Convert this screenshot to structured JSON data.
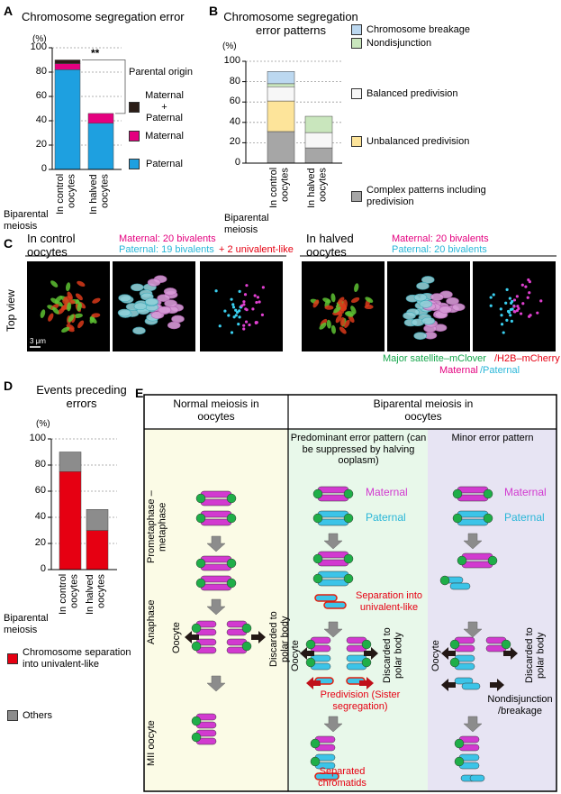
{
  "panel_labels": [
    "A",
    "B",
    "C",
    "D",
    "E"
  ],
  "chart_data": [
    {
      "type": "bar",
      "stacked": true,
      "title": "Chromosome segregation error",
      "ylabel": "(%)",
      "xlabel": "Biparental meiosis",
      "categories": [
        "In control oocytes",
        "In halved oocytes"
      ],
      "series": [
        {
          "name": "Paternal",
          "color": "#1ea0e0",
          "values": [
            82,
            38
          ]
        },
        {
          "name": "Maternal",
          "color": "#e4007f",
          "values": [
            5,
            8
          ]
        },
        {
          "name": "Maternal + Paternal",
          "color": "#2b1d17",
          "values": [
            3,
            0
          ]
        }
      ],
      "ylim": [
        0,
        100
      ],
      "yticks": [
        0,
        20,
        40,
        60,
        80,
        100
      ],
      "grid": true,
      "legend_title": "Parental origin",
      "legend_reversed": true,
      "annotation": "**"
    },
    {
      "type": "bar",
      "stacked": true,
      "title": "Chromosome segregation error patterns",
      "ylabel": "(%)",
      "xlabel": "Biparental meiosis",
      "categories": [
        "In control oocytes",
        "In halved oocytes"
      ],
      "series": [
        {
          "name": "Complex patterns including predivision",
          "color": "#a6a6a6",
          "values": [
            31,
            15
          ]
        },
        {
          "name": "Unbalanced predivision",
          "color": "#fde49a",
          "values": [
            30,
            0
          ]
        },
        {
          "name": "Balanced predivision",
          "color": "#f7f7f7",
          "values": [
            14,
            15
          ]
        },
        {
          "name": "Nondisjunction",
          "color": "#c9e6bd",
          "values": [
            3,
            16
          ]
        },
        {
          "name": "Chromosome breakage",
          "color": "#bcd8f0",
          "values": [
            12,
            0
          ]
        }
      ],
      "ylim": [
        0,
        100
      ],
      "yticks": [
        0,
        20,
        40,
        60,
        80,
        100
      ],
      "grid": true,
      "legend_reversed": true
    },
    {
      "type": "bar",
      "stacked": true,
      "title": "Events preceding errors",
      "ylabel": "(%)",
      "xlabel": "Biparental meiosis",
      "categories": [
        "In control oocytes",
        "In halved oocytes"
      ],
      "series": [
        {
          "name": "Chromosome separation into univalent-like",
          "color": "#e60012",
          "values": [
            75,
            30
          ]
        },
        {
          "name": "Others",
          "color": "#8c8c8c",
          "values": [
            15,
            16
          ]
        }
      ],
      "ylim": [
        0,
        100
      ],
      "yticks": [
        0,
        20,
        40,
        60,
        80,
        100
      ],
      "grid": true,
      "legend_reversed": false
    }
  ],
  "panel_c": {
    "left_title": "In control oocytes",
    "left_maternal": "Maternal: 20 bivalents",
    "left_paternal": "Paternal: 19 bivalents",
    "left_univalent": "+ 2 univalent-like",
    "right_title": "In halved oocytes",
    "right_maternal": "Maternal: 20 bivalents",
    "right_paternal": "Paternal: 20 bivalents",
    "row_label": "Top view",
    "scale_bar": "3 μm",
    "caption_green": "Major satellite–mClover",
    "caption_red": "/H2B–mCherry",
    "caption_maternal": "Maternal",
    "caption_paternal": "/Paternal"
  },
  "panel_e": {
    "normal_header": "Normal meiosis in oocytes",
    "biparental_header": "Biparental meiosis in oocytes",
    "predominant_header": "Predominant error pattern (can be suppressed by halving ooplasm)",
    "minor_header": "Minor error pattern",
    "rows": [
      "Prometaphase –metaphase",
      "Anaphase",
      "MII oocyte"
    ],
    "normal": {
      "oocyte": "Oocyte",
      "polar_body": "Discarded to polar body"
    },
    "predominant": {
      "maternal": "Maternal",
      "paternal": "Paternal",
      "separation": "Separation into univalent-like",
      "oocyte": "Oocyte",
      "polar_body": "Discarded to polar body",
      "predivision": "Predivision (Sister segregation)",
      "separated": "Separated chromatids"
    },
    "minor": {
      "maternal": "Maternal",
      "paternal": "Paternal",
      "oocyte": "Oocyte",
      "polar_body": "Discarded to polar body",
      "nondisjunction": "Nondisjunction /breakage"
    }
  }
}
